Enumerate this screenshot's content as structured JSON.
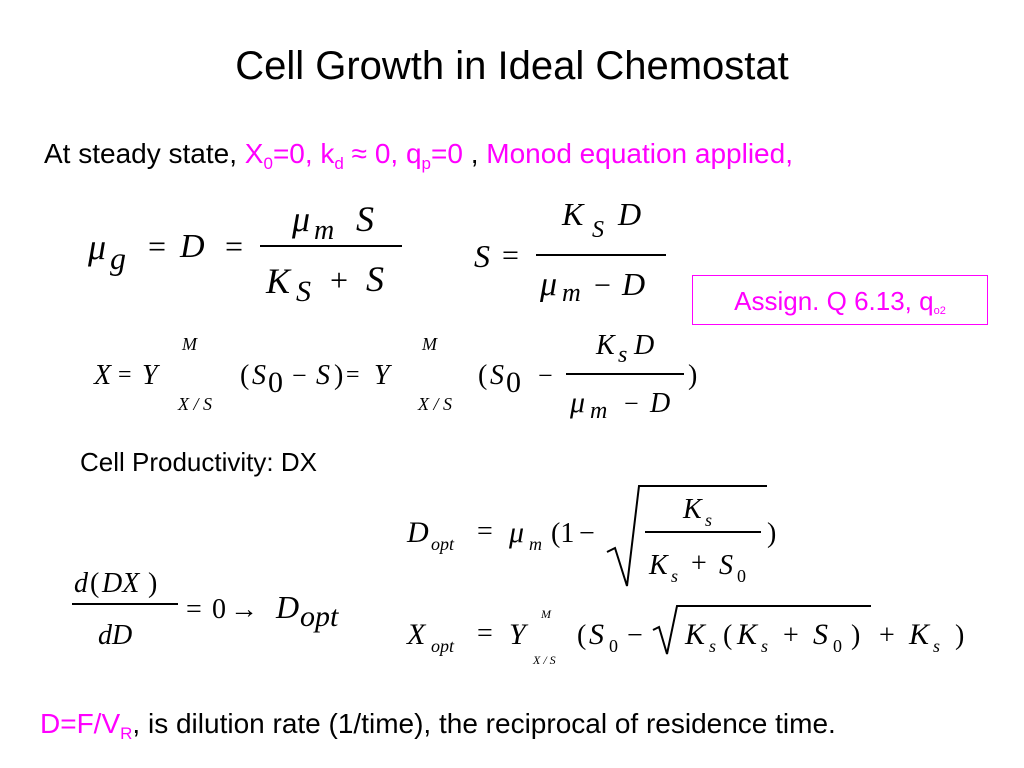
{
  "title": "Cell Growth in Ideal Chemostat",
  "intro": {
    "prefix": "At steady state,",
    "x": "X",
    "x_sub": "0",
    "x_rest": "=0, k",
    "kd_sub": "d",
    "approx": "≈ 0, q",
    "qp_sub": "p",
    "qp_rest": "=0",
    "comma": ",",
    "monod": "Monod equation applied,"
  },
  "assign": {
    "text": "Assign. Q 6.13, q",
    "sub": "o2"
  },
  "cell_productivity": "Cell Productivity: DX",
  "footer": {
    "d": "D=F/V",
    "r_sub": "R",
    "rest": ", is dilution rate (1/time), the reciprocal of residence time."
  }
}
